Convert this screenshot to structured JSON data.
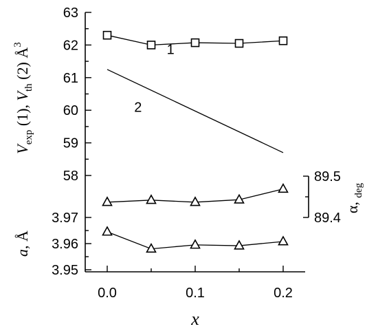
{
  "chart_data": {
    "type": "line",
    "xlabel": "x",
    "x_ticks": [
      "0.0",
      "0.1",
      "0.2"
    ],
    "xlim": [
      -0.025,
      0.225
    ],
    "panels": [
      {
        "name": "volume",
        "ylabel_parts": [
          "V",
          "exp",
          " (1), ",
          "V",
          "th",
          " (2) Å",
          "3"
        ],
        "ylim": [
          58,
          63
        ],
        "y_ticks": [
          "58",
          "59",
          "60",
          "61",
          "62",
          "63"
        ],
        "series": [
          {
            "name": "1",
            "marker": "square",
            "x": [
              0.0,
              0.05,
              0.1,
              0.15,
              0.2
            ],
            "y": [
              62.3,
              62.0,
              62.07,
              62.05,
              62.13
            ]
          },
          {
            "name": "2",
            "marker": "none",
            "x": [
              0.0,
              0.2
            ],
            "y": [
              61.25,
              58.7
            ]
          }
        ]
      },
      {
        "name": "alpha",
        "axis": "right",
        "ylabel": "α,",
        "ylabel_sub": "deg",
        "ylim": [
          89.4,
          89.5
        ],
        "y_ticks": [
          "89.4",
          "89.5"
        ],
        "series": [
          {
            "marker": "triangle",
            "x": [
              0.0,
              0.05,
              0.1,
              0.15,
              0.2
            ],
            "y": [
              89.437,
              89.442,
              89.437,
              89.443,
              89.469
            ]
          }
        ]
      },
      {
        "name": "lattice",
        "ylabel": "a, Å",
        "ylim": [
          3.95,
          3.97
        ],
        "y_ticks": [
          "3.95",
          "3.96",
          "3.97"
        ],
        "series": [
          {
            "marker": "triangle",
            "x": [
              0.0,
              0.05,
              0.1,
              0.15,
              0.2
            ],
            "y": [
              3.9645,
              3.958,
              3.9595,
              3.9592,
              3.9608
            ]
          }
        ]
      }
    ]
  }
}
